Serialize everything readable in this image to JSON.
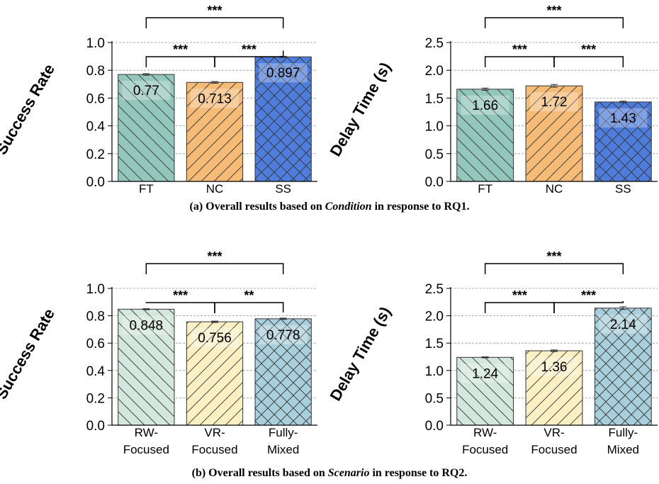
{
  "captions": {
    "a": {
      "prefix": "(a) Overall results based on ",
      "emph": "Condition",
      "suffix": " in response to RQ1."
    },
    "b": {
      "prefix": "(b) Overall results based on ",
      "emph": "Scenario",
      "suffix": " in response to RQ2."
    }
  },
  "chart_data": [
    {
      "type": "bar",
      "panel": "a",
      "ylabel": "Success Rate",
      "categories": [
        [
          "FT"
        ],
        [
          "NC"
        ],
        [
          "SS"
        ]
      ],
      "values": [
        0.77,
        0.713,
        0.897
      ],
      "value_labels": [
        "0.77",
        "0.713",
        "0.897"
      ],
      "errors": [
        0.006,
        0.006,
        0.004
      ],
      "ylim": [
        0,
        1.0
      ],
      "yticks": [
        "0.0",
        "0.2",
        "0.4",
        "0.6",
        "0.8",
        "1.0"
      ],
      "grid": "horizontal dashed",
      "colors": [
        "#94c7bc",
        "#f7bb78",
        "#4f7ddb"
      ],
      "hatches": [
        "\\",
        "/",
        "x"
      ],
      "significance": [
        {
          "from": 0,
          "to": 1,
          "label": "***"
        },
        {
          "from": 1,
          "to": 2,
          "label": "***"
        },
        {
          "from": 0,
          "to": 2,
          "label": "***"
        }
      ]
    },
    {
      "type": "bar",
      "panel": "a",
      "ylabel": "Delay Time (s)",
      "categories": [
        [
          "FT"
        ],
        [
          "NC"
        ],
        [
          "SS"
        ]
      ],
      "values": [
        1.66,
        1.72,
        1.43
      ],
      "value_labels": [
        "1.66",
        "1.72",
        "1.43"
      ],
      "errors": [
        0.02,
        0.025,
        0.015
      ],
      "ylim": [
        0,
        2.5
      ],
      "yticks": [
        "0.0",
        "0.5",
        "1.0",
        "1.5",
        "2.0",
        "2.5"
      ],
      "grid": "horizontal dashed",
      "colors": [
        "#94c7bc",
        "#f7bb78",
        "#4f7ddb"
      ],
      "hatches": [
        "\\",
        "/",
        "x"
      ],
      "significance": [
        {
          "from": 0,
          "to": 1,
          "label": "***"
        },
        {
          "from": 1,
          "to": 2,
          "label": "***"
        },
        {
          "from": 0,
          "to": 2,
          "label": "***"
        }
      ]
    },
    {
      "type": "bar",
      "panel": "b",
      "ylabel": "Success Rate",
      "categories": [
        [
          "RW-",
          "Focused"
        ],
        [
          "VR-",
          "Focused"
        ],
        [
          "Fully-",
          "Mixed"
        ]
      ],
      "values": [
        0.848,
        0.756,
        0.778
      ],
      "value_labels": [
        "0.848",
        "0.756",
        "0.778"
      ],
      "errors": [
        0.004,
        0.005,
        0.005
      ],
      "ylim": [
        0,
        1.0
      ],
      "yticks": [
        "0.0",
        "0.2",
        "0.4",
        "0.6",
        "0.8",
        "1.0"
      ],
      "grid": "horizontal dashed",
      "colors": [
        "#d3e7de",
        "#fbf0c4",
        "#a9cfdc"
      ],
      "hatches": [
        "\\",
        "/",
        "x"
      ],
      "significance": [
        {
          "from": 0,
          "to": 1,
          "label": "***"
        },
        {
          "from": 1,
          "to": 2,
          "label": "**"
        },
        {
          "from": 0,
          "to": 2,
          "label": "***"
        }
      ]
    },
    {
      "type": "bar",
      "panel": "b",
      "ylabel": "Delay Time (s)",
      "categories": [
        [
          "RW-",
          "Focused"
        ],
        [
          "VR-",
          "Focused"
        ],
        [
          "Fully-",
          "Mixed"
        ]
      ],
      "values": [
        1.24,
        1.36,
        2.14
      ],
      "value_labels": [
        "1.24",
        "1.36",
        "2.14"
      ],
      "errors": [
        0.01,
        0.015,
        0.025
      ],
      "ylim": [
        0,
        2.5
      ],
      "yticks": [
        "0.0",
        "0.5",
        "1.0",
        "1.5",
        "2.0",
        "2.5"
      ],
      "grid": "horizontal dashed",
      "colors": [
        "#d3e7de",
        "#fbf0c4",
        "#a9cfdc"
      ],
      "hatches": [
        "\\",
        "/",
        "x"
      ],
      "significance": [
        {
          "from": 0,
          "to": 1,
          "label": "***"
        },
        {
          "from": 1,
          "to": 2,
          "label": "***"
        },
        {
          "from": 0,
          "to": 2,
          "label": "***"
        }
      ]
    }
  ]
}
